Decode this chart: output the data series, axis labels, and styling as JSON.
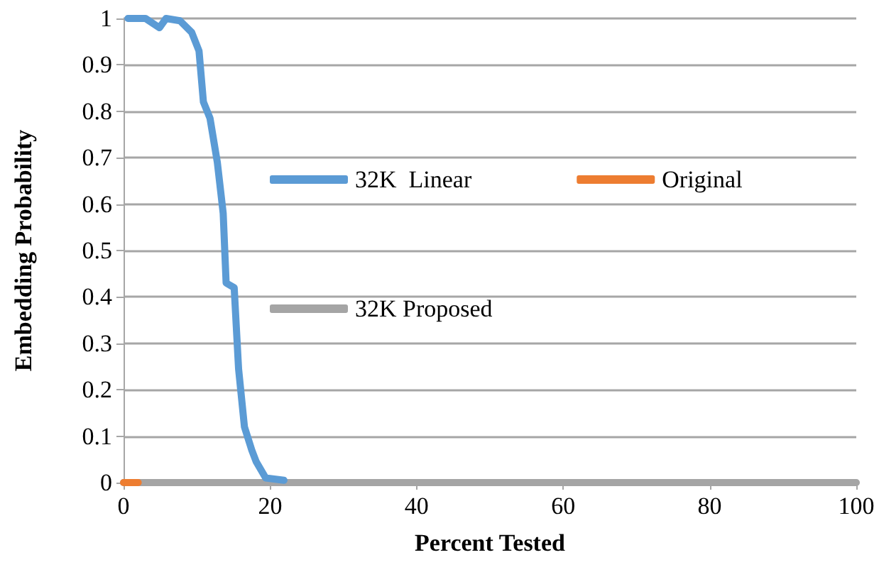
{
  "chart_data": {
    "type": "line",
    "xlabel": "Percent Tested",
    "ylabel": "Embedding Probability",
    "xlim": [
      0,
      100
    ],
    "xticks": [
      0,
      20,
      40,
      60,
      80,
      100
    ],
    "ylim": [
      0,
      1
    ],
    "yticks": [
      0,
      0.1,
      0.2,
      0.3,
      0.4,
      0.5,
      0.6,
      0.7,
      0.8,
      0.9,
      1
    ],
    "grid": "y",
    "legend": "top right",
    "marker": "none",
    "line_style": "solid",
    "series": [
      {
        "name": "32K  Linear",
        "color": "#5b9bd5",
        "x": [
          0.6,
          3,
          4.9,
          5.8,
          7.7,
          9.3,
          10.3,
          10.9,
          11.8,
          12.8,
          13.6,
          14,
          15.1,
          15.7,
          16.5,
          17.5,
          18.1,
          19.4,
          21.9
        ],
        "values": [
          1,
          1,
          0.98,
          1,
          0.995,
          0.97,
          0.93,
          0.82,
          0.785,
          0.69,
          0.58,
          0.43,
          0.42,
          0.245,
          0.12,
          0.07,
          0.045,
          0.01,
          0.005
        ]
      },
      {
        "name": "Original",
        "color": "#ed7d31",
        "x": [
          0,
          2
        ],
        "values": [
          0,
          0
        ]
      },
      {
        "name": "32K Proposed",
        "color": "#a5a5a5",
        "x": [
          0,
          100
        ],
        "values": [
          0,
          0
        ]
      }
    ]
  }
}
